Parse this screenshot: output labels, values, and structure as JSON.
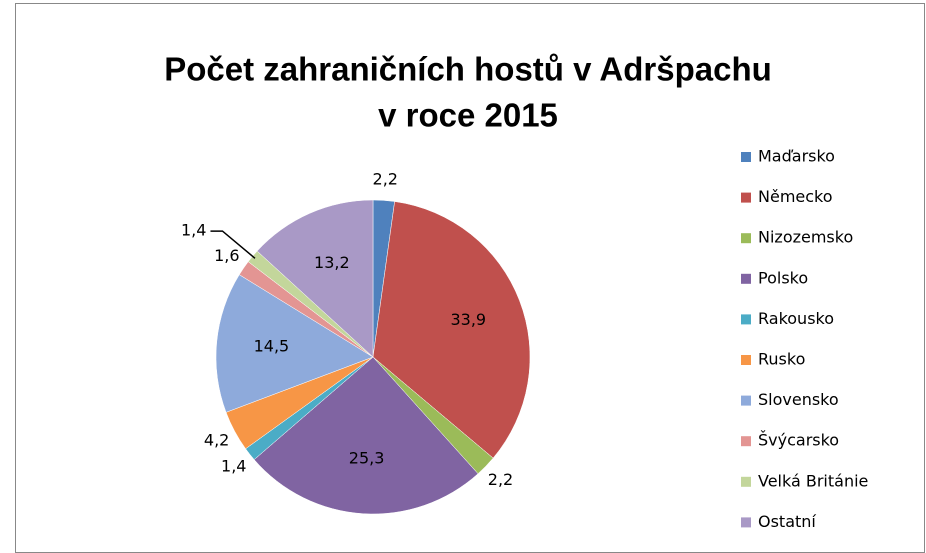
{
  "chart_data": {
    "type": "pie",
    "title": [
      "Počet zahraničních hostů v Adršpachu",
      "v roce 2015"
    ],
    "categories": [
      "Maďarsko",
      "Německo",
      "Nizozemsko",
      "Polsko",
      "Rakousko",
      "Rusko",
      "Slovensko",
      "Švýcarsko",
      "Velká Británie",
      "Ostatní"
    ],
    "values": [
      2.2,
      33.9,
      2.2,
      25.3,
      1.4,
      4.2,
      14.5,
      1.6,
      1.4,
      13.2
    ],
    "value_labels": [
      "2,2",
      "33,9",
      "2,2",
      "25,3",
      "1,4",
      "4,2",
      "14,5",
      "1,6",
      "1,4",
      "13,2"
    ],
    "colors": [
      "#4f81bd",
      "#c0504d",
      "#9bbb59",
      "#8064a2",
      "#4bacc6",
      "#f79646",
      "#8eaadb",
      "#e39593",
      "#c3d69b",
      "#a999c6"
    ],
    "legend": "right"
  }
}
